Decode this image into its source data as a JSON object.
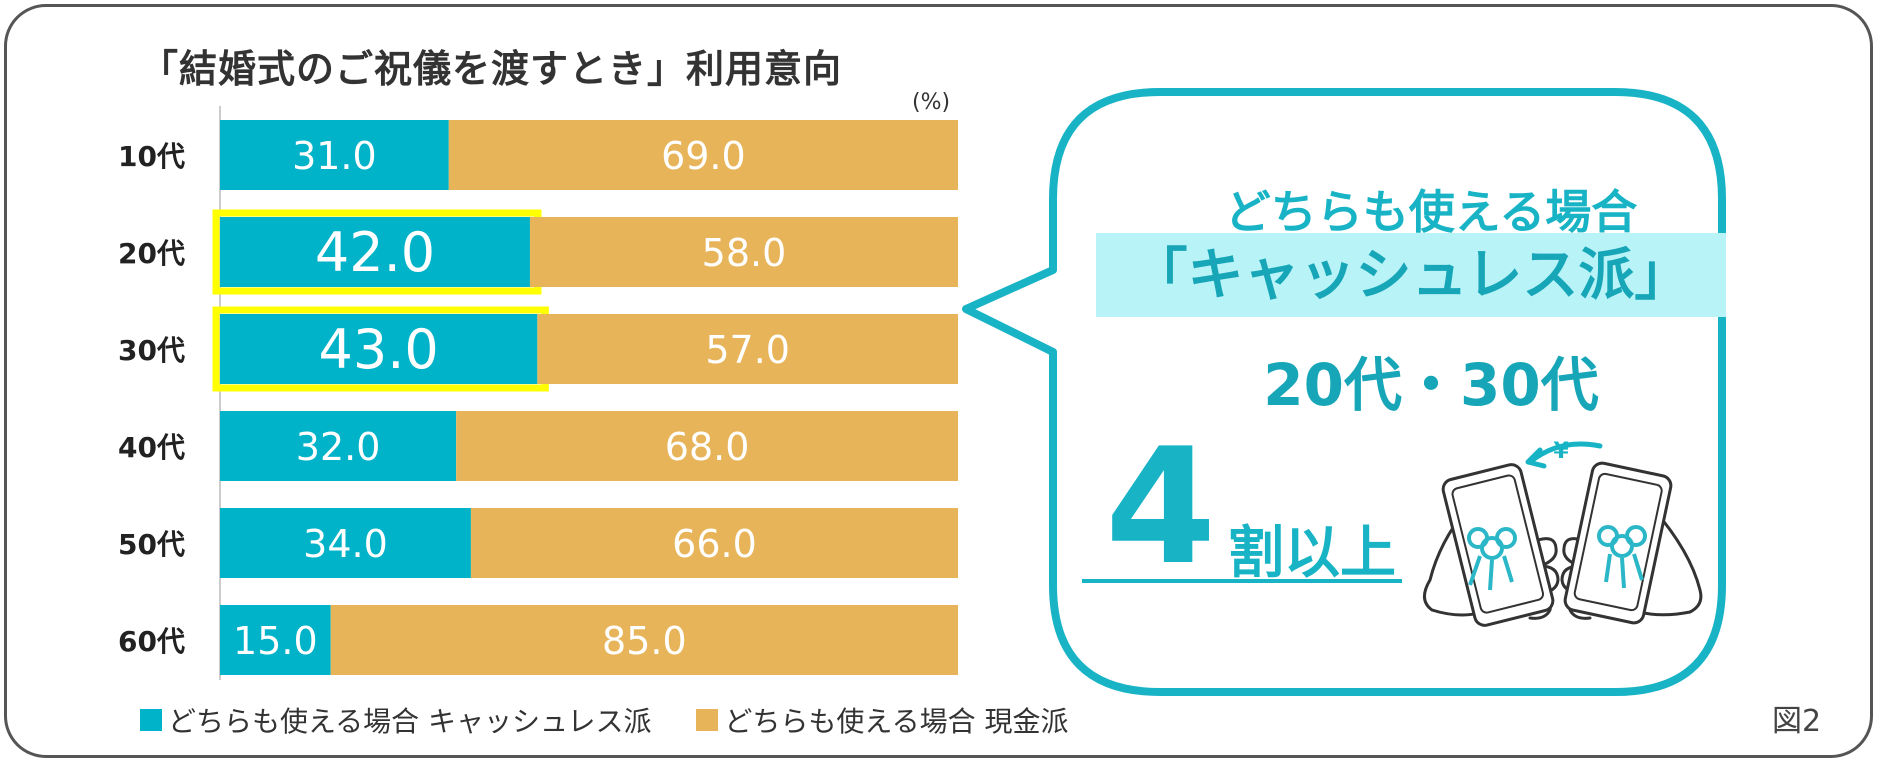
{
  "title": "「結婚式のご祝儀を渡すとき」利用意向",
  "unit": "(%)",
  "figure_label": "図2",
  "colors": {
    "cashless": "#00b3c9",
    "cash": "#e8b45a",
    "highlight_box": "#ffff00",
    "accent": "#18b4c6"
  },
  "legend": {
    "cashless": "どちらも使える場合 キャッシュレス派",
    "cash": "どちらも使える場合 現金派"
  },
  "chart_data": {
    "type": "bar",
    "orientation": "horizontal",
    "stacked": true,
    "categories": [
      "10代",
      "20代",
      "30代",
      "40代",
      "50代",
      "60代"
    ],
    "series": [
      {
        "name": "どちらも使える場合 キャッシュレス派",
        "values": [
          31.0,
          42.0,
          43.0,
          32.0,
          34.0,
          15.0
        ]
      },
      {
        "name": "どちらも使える場合 現金派",
        "values": [
          69.0,
          58.0,
          57.0,
          68.0,
          66.0,
          85.0
        ]
      }
    ],
    "xlim": [
      0,
      100
    ],
    "highlighted_categories": [
      "20代",
      "30代"
    ],
    "legend_position": "bottom-left"
  },
  "callout": {
    "line1": "どちらも使える場合",
    "line2": "「キャッシュレス派」",
    "line3": "20代・30代",
    "number": "4",
    "suffix": "割以上",
    "illustration": "two-phones-exchanging-yen-icon",
    "yen": "¥"
  }
}
